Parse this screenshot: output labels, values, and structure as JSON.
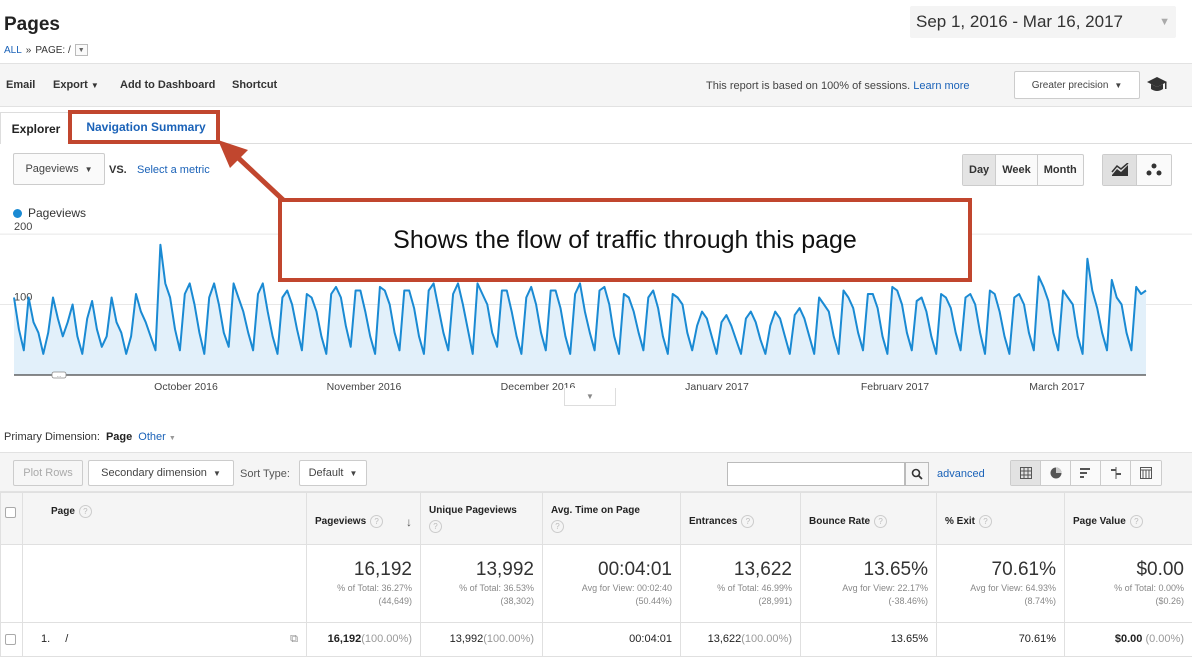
{
  "header": {
    "title": "Pages",
    "breadcrumb": {
      "all": "ALL",
      "sep": "»",
      "page": "PAGE: /"
    },
    "date_range": "Sep 1, 2016 - Mar 16, 2017"
  },
  "toolbar": {
    "email": "Email",
    "export": "Export",
    "add_to_dashboard": "Add to Dashboard",
    "shortcut": "Shortcut",
    "report_note": "This report is based on 100% of sessions.",
    "learn_more": "Learn more",
    "precision": "Greater precision"
  },
  "tabs": {
    "explorer": "Explorer",
    "navigation_summary": "Navigation Summary"
  },
  "chart_controls": {
    "metric": "Pageviews",
    "vs": "VS.",
    "select_metric": "Select a metric",
    "periods": [
      "Day",
      "Week",
      "Month"
    ],
    "active_period": "Day"
  },
  "callout": "Shows the flow of traffic through this page",
  "chart_data": {
    "type": "area",
    "series": [
      {
        "name": "Pageviews",
        "color": "#1a8ad3",
        "values": [
          110,
          65,
          35,
          110,
          75,
          60,
          30,
          60,
          110,
          80,
          55,
          75,
          100,
          55,
          30,
          80,
          105,
          65,
          40,
          55,
          110,
          75,
          60,
          30,
          55,
          115,
          90,
          75,
          55,
          35,
          185,
          130,
          110,
          65,
          35,
          115,
          130,
          100,
          60,
          30,
          110,
          130,
          100,
          60,
          40,
          130,
          110,
          90,
          60,
          35,
          115,
          130,
          90,
          55,
          30,
          110,
          120,
          100,
          65,
          35,
          115,
          110,
          90,
          55,
          30,
          115,
          125,
          110,
          70,
          40,
          120,
          120,
          90,
          55,
          30,
          125,
          120,
          100,
          60,
          35,
          120,
          120,
          95,
          55,
          30,
          120,
          130,
          95,
          60,
          35,
          115,
          130,
          100,
          65,
          30,
          130,
          115,
          100,
          60,
          40,
          120,
          120,
          90,
          55,
          30,
          110,
          125,
          100,
          60,
          35,
          120,
          120,
          95,
          55,
          30,
          115,
          130,
          90,
          60,
          35,
          120,
          125,
          100,
          55,
          30,
          115,
          110,
          90,
          60,
          35,
          110,
          120,
          95,
          55,
          30,
          115,
          110,
          100,
          60,
          35,
          70,
          90,
          80,
          55,
          30,
          75,
          85,
          70,
          50,
          30,
          80,
          90,
          75,
          50,
          30,
          70,
          90,
          80,
          55,
          30,
          85,
          95,
          80,
          55,
          30,
          110,
          100,
          90,
          55,
          30,
          120,
          110,
          95,
          60,
          35,
          115,
          115,
          95,
          55,
          30,
          125,
          120,
          100,
          60,
          35,
          105,
          110,
          90,
          55,
          30,
          115,
          110,
          95,
          60,
          35,
          110,
          115,
          100,
          60,
          30,
          120,
          115,
          90,
          55,
          30,
          110,
          115,
          100,
          60,
          35,
          140,
          125,
          105,
          60,
          35,
          120,
          110,
          100,
          55,
          30,
          165,
          120,
          95,
          60,
          35,
          135,
          110,
          100,
          60,
          35,
          125,
          115,
          120
        ]
      }
    ],
    "y_ticks": [
      100,
      200
    ],
    "x_labels": [
      "October 2016",
      "November 2016",
      "December 2016",
      "January 2017",
      "February 2017",
      "March 2017"
    ],
    "ylim": [
      0,
      220
    ],
    "annotation": "…",
    "grid": true,
    "legend": "top-left"
  },
  "primary_dimension": {
    "label": "Primary Dimension:",
    "active": "Page",
    "other": "Other"
  },
  "table_controls": {
    "plot_rows": "Plot Rows",
    "secondary_dimension": "Secondary dimension",
    "sort_type_label": "Sort Type:",
    "sort_type": "Default",
    "advanced": "advanced"
  },
  "table": {
    "columns": [
      "Page",
      "Pageviews",
      "Unique Pageviews",
      "Avg. Time on Page",
      "Entrances",
      "Bounce Rate",
      "% Exit",
      "Page Value"
    ],
    "totals": [
      {
        "value": "16,192",
        "sub1": "% of Total: 36.27%",
        "sub2": "(44,649)"
      },
      {
        "value": "13,992",
        "sub1": "% of Total: 36.53%",
        "sub2": "(38,302)"
      },
      {
        "value": "00:04:01",
        "sub1": "Avg for View: 00:02:40",
        "sub2": "(50.44%)"
      },
      {
        "value": "13,622",
        "sub1": "% of Total: 46.99%",
        "sub2": "(28,991)"
      },
      {
        "value": "13.65%",
        "sub1": "Avg for View: 22.17%",
        "sub2": "(-38.46%)"
      },
      {
        "value": "70.61%",
        "sub1": "Avg for View: 64.93%",
        "sub2": "(8.74%)"
      },
      {
        "value": "$0.00",
        "sub1": "% of Total: 0.00%",
        "sub2": "($0.26)"
      }
    ],
    "rows": [
      {
        "index": "1.",
        "page": "/",
        "pageviews": "16,192",
        "pageviews_pct": "(100.00%)",
        "unique": "13,992",
        "unique_pct": "(100.00%)",
        "avg_time": "00:04:01",
        "entrances": "13,622",
        "entrances_pct": "(100.00%)",
        "bounce": "13.65%",
        "exit": "70.61%",
        "value": "$0.00",
        "value_pct": "(0.00%)"
      }
    ]
  }
}
